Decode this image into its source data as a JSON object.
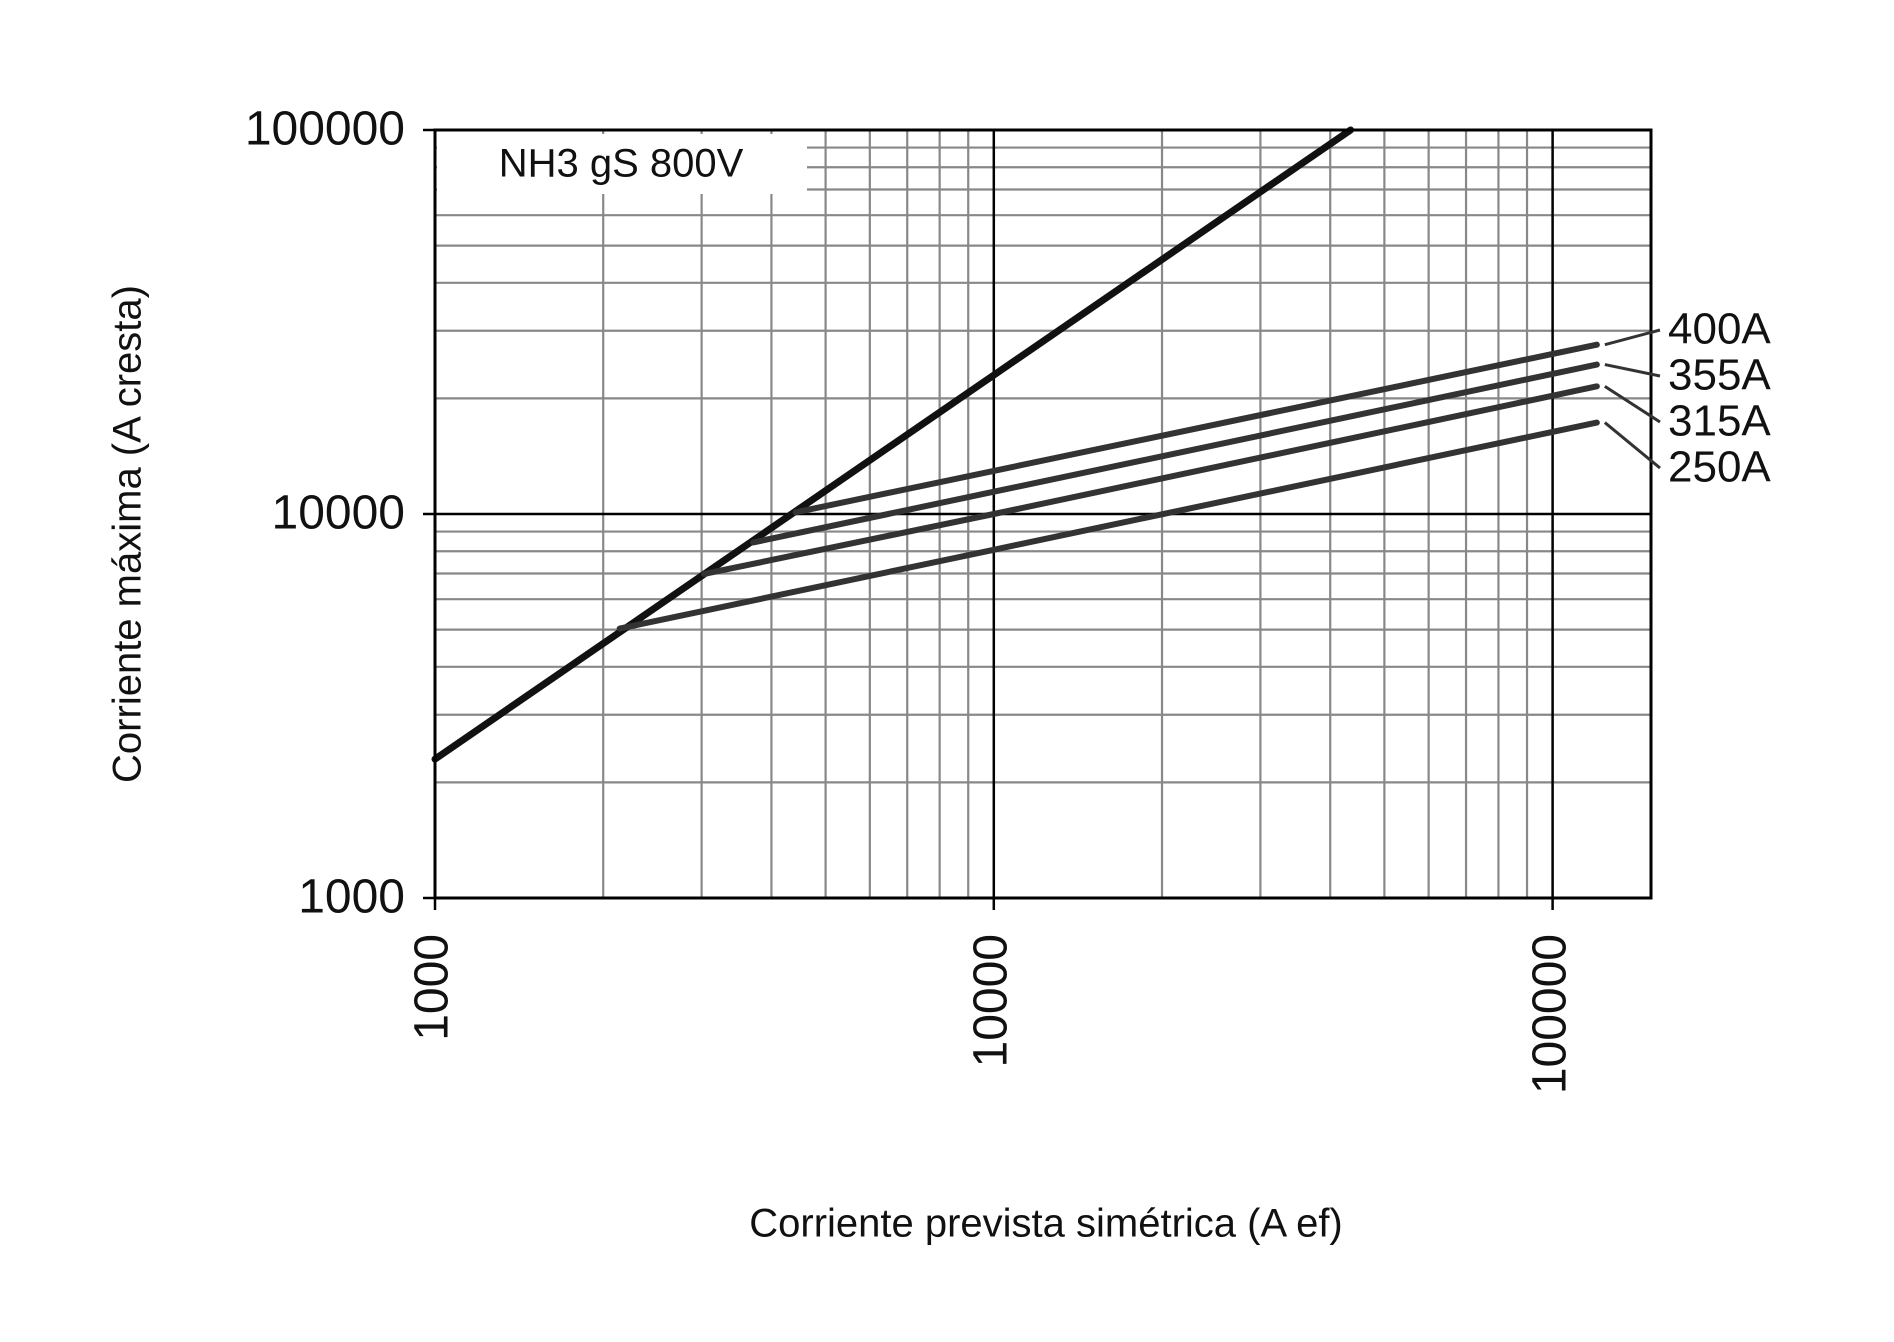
{
  "chart_data": {
    "type": "line",
    "title": "NH3 gS 800V",
    "x_label": "Corriente prevista simétrica (A ef)",
    "y_label": "Corriente máxima (A cresta)",
    "log_x": true,
    "log_y": true,
    "grid": true,
    "minor_grid": true,
    "xlim": [
      1000,
      150000
    ],
    "ylim": [
      1000,
      100000
    ],
    "xticks": [
      1000,
      10000,
      100000
    ],
    "yticks": [
      1000,
      10000,
      100000
    ],
    "series": [
      {
        "color": "#111111",
        "x": [
          1000,
          10000,
          43500
        ],
        "values": [
          2300,
          23000,
          100000
        ]
      },
      {
        "name": "400A",
        "color": "#333333",
        "x": [
          4420,
          120000
        ],
        "values": [
          10100,
          27600
        ]
      },
      {
        "name": "355A",
        "color": "#333333",
        "x": [
          3710,
          120000
        ],
        "values": [
          8430,
          24500
        ]
      },
      {
        "name": "315A",
        "color": "#333333",
        "x": [
          3030,
          10000,
          120000
        ],
        "values": [
          6980,
          10000,
          21500
        ]
      },
      {
        "name": "250A",
        "color": "#333333",
        "x": [
          2140,
          10000,
          120000
        ],
        "values": [
          5030,
          8070,
          17300
        ]
      }
    ]
  }
}
